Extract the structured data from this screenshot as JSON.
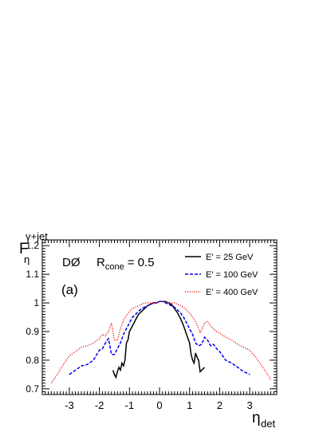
{
  "chart_data": {
    "type": "line",
    "xlim": [
      -3.9,
      3.9
    ],
    "ylim": [
      0.68,
      1.22
    ],
    "x_ticks": [
      -3,
      -2,
      -1,
      0,
      1,
      2,
      3
    ],
    "x_tick_labels": [
      "-3",
      "-2",
      "-1",
      "0",
      "1",
      "2",
      "3"
    ],
    "y_ticks": [
      0.7,
      0.8,
      0.9,
      1.0,
      1.1,
      1.2
    ],
    "y_tick_labels": [
      "0.7",
      "0.8",
      "0.9",
      "1",
      "1.1",
      "1.2"
    ],
    "ylabel": "F",
    "ylabel_sub": "η",
    "ylabel_sup": "γ+jet",
    "xlabel": "η",
    "xlabel_sub": "det",
    "experiment_label": "DØ",
    "cone_label_main": "R",
    "cone_label_sub": "cone",
    "cone_label_value": "= 0.5",
    "panel_label": "(a)",
    "legend_position": "top-right",
    "series": [
      {
        "name": "E' = 25 GeV",
        "color": "#000000",
        "style": "solid",
        "points": [
          [
            -1.55,
            0.765
          ],
          [
            -1.5,
            0.75
          ],
          [
            -1.45,
            0.74
          ],
          [
            -1.4,
            0.76
          ],
          [
            -1.35,
            0.775
          ],
          [
            -1.3,
            0.765
          ],
          [
            -1.25,
            0.79
          ],
          [
            -1.2,
            0.78
          ],
          [
            -1.15,
            0.8
          ],
          [
            -1.1,
            0.86
          ],
          [
            -1.05,
            0.87
          ],
          [
            -1.0,
            0.9
          ],
          [
            -0.9,
            0.92
          ],
          [
            -0.8,
            0.94
          ],
          [
            -0.7,
            0.96
          ],
          [
            -0.6,
            0.97
          ],
          [
            -0.5,
            0.98
          ],
          [
            -0.4,
            0.99
          ],
          [
            -0.3,
            0.995
          ],
          [
            -0.2,
            1.0
          ],
          [
            -0.1,
            1.0
          ],
          [
            0.0,
            1.005
          ],
          [
            0.1,
            1.005
          ],
          [
            0.2,
            1.005
          ],
          [
            0.3,
            1.0
          ],
          [
            0.4,
            0.995
          ],
          [
            0.5,
            0.98
          ],
          [
            0.6,
            0.965
          ],
          [
            0.7,
            0.945
          ],
          [
            0.8,
            0.92
          ],
          [
            0.9,
            0.89
          ],
          [
            1.0,
            0.86
          ],
          [
            1.05,
            0.82
          ],
          [
            1.1,
            0.8
          ],
          [
            1.15,
            0.79
          ],
          [
            1.2,
            0.825
          ],
          [
            1.25,
            0.81
          ],
          [
            1.3,
            0.8
          ],
          [
            1.35,
            0.76
          ],
          [
            1.4,
            0.765
          ],
          [
            1.5,
            0.775
          ]
        ]
      },
      {
        "name": "E' = 100 GeV",
        "color": "#0000ee",
        "style": "dashed",
        "points": [
          [
            -3.0,
            0.75
          ],
          [
            -2.8,
            0.765
          ],
          [
            -2.6,
            0.78
          ],
          [
            -2.4,
            0.785
          ],
          [
            -2.2,
            0.8
          ],
          [
            -2.0,
            0.835
          ],
          [
            -1.9,
            0.84
          ],
          [
            -1.8,
            0.86
          ],
          [
            -1.7,
            0.875
          ],
          [
            -1.65,
            0.85
          ],
          [
            -1.6,
            0.82
          ],
          [
            -1.5,
            0.82
          ],
          [
            -1.4,
            0.84
          ],
          [
            -1.3,
            0.86
          ],
          [
            -1.2,
            0.89
          ],
          [
            -1.1,
            0.91
          ],
          [
            -1.0,
            0.93
          ],
          [
            -0.9,
            0.95
          ],
          [
            -0.8,
            0.96
          ],
          [
            -0.7,
            0.97
          ],
          [
            -0.6,
            0.98
          ],
          [
            -0.5,
            0.985
          ],
          [
            -0.4,
            0.99
          ],
          [
            -0.3,
            0.995
          ],
          [
            -0.2,
            1.0
          ],
          [
            -0.1,
            1.0
          ],
          [
            0.0,
            1.005
          ],
          [
            0.1,
            1.005
          ],
          [
            0.2,
            1.0
          ],
          [
            0.3,
            0.995
          ],
          [
            0.4,
            0.99
          ],
          [
            0.5,
            0.985
          ],
          [
            0.6,
            0.975
          ],
          [
            0.7,
            0.965
          ],
          [
            0.8,
            0.95
          ],
          [
            0.9,
            0.93
          ],
          [
            1.0,
            0.91
          ],
          [
            1.1,
            0.89
          ],
          [
            1.2,
            0.86
          ],
          [
            1.3,
            0.85
          ],
          [
            1.4,
            0.855
          ],
          [
            1.5,
            0.88
          ],
          [
            1.6,
            0.87
          ],
          [
            1.7,
            0.85
          ],
          [
            1.8,
            0.855
          ],
          [
            1.9,
            0.84
          ],
          [
            2.0,
            0.83
          ],
          [
            2.2,
            0.8
          ],
          [
            2.4,
            0.79
          ],
          [
            2.6,
            0.775
          ],
          [
            2.8,
            0.76
          ],
          [
            3.0,
            0.75
          ]
        ]
      },
      {
        "name": "E' = 400 GeV",
        "color": "#ee0000",
        "style": "dotted",
        "points": [
          [
            -3.6,
            0.72
          ],
          [
            -3.4,
            0.75
          ],
          [
            -3.2,
            0.785
          ],
          [
            -3.0,
            0.815
          ],
          [
            -2.8,
            0.83
          ],
          [
            -2.6,
            0.845
          ],
          [
            -2.4,
            0.85
          ],
          [
            -2.2,
            0.86
          ],
          [
            -2.0,
            0.875
          ],
          [
            -1.9,
            0.89
          ],
          [
            -1.8,
            0.885
          ],
          [
            -1.7,
            0.9
          ],
          [
            -1.6,
            0.93
          ],
          [
            -1.55,
            0.9
          ],
          [
            -1.5,
            0.87
          ],
          [
            -1.4,
            0.87
          ],
          [
            -1.3,
            0.91
          ],
          [
            -1.2,
            0.94
          ],
          [
            -1.1,
            0.955
          ],
          [
            -1.0,
            0.97
          ],
          [
            -0.9,
            0.98
          ],
          [
            -0.8,
            0.985
          ],
          [
            -0.7,
            0.99
          ],
          [
            -0.6,
            0.995
          ],
          [
            -0.5,
            1.0
          ],
          [
            -0.4,
            1.0
          ],
          [
            -0.3,
            1.0
          ],
          [
            -0.2,
            1.0
          ],
          [
            -0.1,
            1.0
          ],
          [
            0.0,
            1.005
          ],
          [
            0.1,
            1.005
          ],
          [
            0.2,
            1.005
          ],
          [
            0.3,
            1.0
          ],
          [
            0.4,
            1.0
          ],
          [
            0.5,
            1.0
          ],
          [
            0.6,
            0.995
          ],
          [
            0.7,
            0.99
          ],
          [
            0.8,
            0.985
          ],
          [
            0.9,
            0.975
          ],
          [
            1.0,
            0.965
          ],
          [
            1.1,
            0.95
          ],
          [
            1.2,
            0.935
          ],
          [
            1.3,
            0.91
          ],
          [
            1.35,
            0.895
          ],
          [
            1.4,
            0.905
          ],
          [
            1.5,
            0.93
          ],
          [
            1.6,
            0.935
          ],
          [
            1.7,
            0.92
          ],
          [
            1.8,
            0.91
          ],
          [
            1.9,
            0.9
          ],
          [
            2.0,
            0.895
          ],
          [
            2.2,
            0.88
          ],
          [
            2.4,
            0.87
          ],
          [
            2.6,
            0.855
          ],
          [
            2.8,
            0.845
          ],
          [
            3.0,
            0.835
          ],
          [
            3.2,
            0.81
          ],
          [
            3.4,
            0.78
          ],
          [
            3.6,
            0.75
          ],
          [
            3.7,
            0.73
          ]
        ]
      }
    ]
  }
}
